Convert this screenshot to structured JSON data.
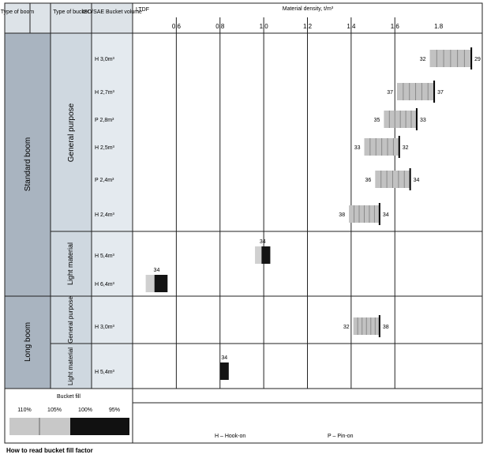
{
  "headers": {
    "type_of_boom": "Type of boom",
    "type_of_bucket": "Type of bucket",
    "bucket_volume": "ISO/SAE Bucket volume",
    "ltdf": "LTDF",
    "density_title": "Material density, t/m³"
  },
  "x_axis": {
    "min": 0.4,
    "max": 2.0,
    "ticks": [
      "0.6",
      "0.8",
      "1.0",
      "1.2",
      "1.4",
      "1.6",
      "1.8"
    ],
    "tick_values": [
      0.6,
      0.8,
      1.0,
      1.2,
      1.4,
      1.6,
      1.8
    ],
    "gridlines": [
      0.6,
      0.8,
      1.0,
      1.2,
      1.4,
      1.6
    ]
  },
  "groups": {
    "standard_boom": "Standard boom",
    "general_purpose": "General purpose",
    "light_material": "Light material",
    "long_boom": "Long boom",
    "long_general_purpose": "General purpose",
    "long_light_material": "Light material"
  },
  "rows": [
    {
      "volume": "H 3,0m³",
      "bar_start": 1.76,
      "bar_end": 1.95,
      "fill_end": 1.95,
      "label_left": "32",
      "label_right": "29",
      "style": "gray"
    },
    {
      "volume": "H 2,7m³",
      "bar_start": 1.61,
      "bar_end": 1.78,
      "fill_end": 1.78,
      "label_left": "37",
      "label_right": "37",
      "style": "gray"
    },
    {
      "volume": "P 2,8m³",
      "bar_start": 1.55,
      "bar_end": 1.7,
      "fill_end": 1.7,
      "label_left": "35",
      "label_right": "33",
      "style": "gray"
    },
    {
      "volume": "H 2,5m³",
      "bar_start": 1.46,
      "bar_end": 1.62,
      "fill_end": 1.62,
      "label_left": "33",
      "label_right": "32",
      "style": "gray"
    },
    {
      "volume": "P 2,4m³",
      "bar_start": 1.51,
      "bar_end": 1.67,
      "fill_end": 1.67,
      "label_left": "36",
      "label_right": "34",
      "style": "gray"
    },
    {
      "volume": "H 2,4m³",
      "bar_start": 1.39,
      "bar_end": 1.53,
      "fill_end": 1.53,
      "label_left": "38",
      "label_right": "34",
      "style": "gray"
    },
    {
      "volume": "H 5,4m³",
      "bar_start": 0.96,
      "bar_end": 1.03,
      "fill_end": 0.99,
      "label_left": "",
      "label_right": "",
      "label_top": "34",
      "style": "black"
    },
    {
      "volume": "H 6,4m³",
      "bar_start": 0.46,
      "bar_end": 0.56,
      "fill_end": 0.5,
      "label_left": "",
      "label_right": "",
      "label_top": "34",
      "style": "black"
    },
    {
      "volume": "H 3,0m³",
      "bar_start": 1.41,
      "bar_end": 1.53,
      "fill_end": 1.53,
      "label_left": "32",
      "label_right": "38",
      "style": "gray"
    },
    {
      "volume": "H 5,4m³",
      "bar_start": 0.8,
      "bar_end": 0.84,
      "fill_end": 0.8,
      "label_left": "",
      "label_right": "",
      "label_top": "34",
      "style": "black"
    }
  ],
  "legend": {
    "title": "Bucket fill",
    "labels": [
      "110%",
      "105%",
      "100%",
      "95%"
    ],
    "colors": [
      "#c8c8c8",
      "#c8c8c8",
      "#111111",
      "#111111"
    ]
  },
  "footnote": {
    "hook_on": "H – Hook-on",
    "pin_on": "P – Pin-on"
  },
  "caption": "How to read bucket fill factor",
  "colors": {
    "group_fill": "#a9b4c0",
    "sub_fill": "#cfd8e0",
    "volume_fill": "#e4eaef",
    "bar_gray": "#c2c2c2",
    "bar_black": "#141414",
    "grid": "#222222"
  }
}
